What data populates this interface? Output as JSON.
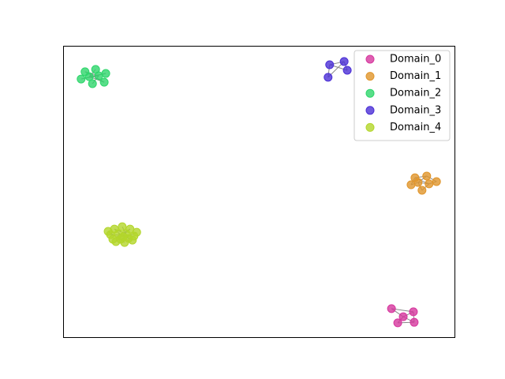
{
  "chart_data": {
    "type": "scatter",
    "xlim": [
      0,
      100
    ],
    "ylim": [
      0,
      100
    ],
    "legend": "upper right",
    "series": [
      {
        "name": "Domain_0",
        "color": "#d6379e",
        "x": [
          83.9,
          89.5,
          86.9,
          85.5,
          89.7
        ],
        "values": [
          9.8,
          8.7,
          7.0,
          4.9,
          5.1
        ],
        "edges": [
          [
            0,
            1
          ],
          [
            0,
            2
          ],
          [
            1,
            2
          ],
          [
            2,
            3
          ],
          [
            2,
            4
          ],
          [
            3,
            4
          ],
          [
            1,
            4
          ]
        ]
      },
      {
        "name": "Domain_1",
        "color": "#e0952b",
        "x": [
          89.9,
          92.9,
          95.4,
          88.9,
          91.7,
          93.5,
          90.7
        ],
        "values": [
          54.7,
          55.3,
          53.4,
          52.3,
          50.4,
          52.6,
          53.1
        ],
        "edges": [
          [
            0,
            1
          ],
          [
            1,
            2
          ],
          [
            0,
            3
          ],
          [
            3,
            6
          ],
          [
            6,
            4
          ],
          [
            4,
            5
          ],
          [
            5,
            2
          ],
          [
            6,
            5
          ],
          [
            0,
            5
          ],
          [
            1,
            6
          ]
        ]
      },
      {
        "name": "Domain_2",
        "color": "#2ed66b",
        "x": [
          5.6,
          8.3,
          10.9,
          4.6,
          7.5,
          10.5,
          9.1,
          6.7
        ],
        "values": [
          91.1,
          91.9,
          90.5,
          88.6,
          87.0,
          87.5,
          89.7,
          89.4
        ],
        "edges": [
          [
            0,
            6
          ],
          [
            1,
            7
          ],
          [
            2,
            7
          ],
          [
            3,
            6
          ],
          [
            4,
            6
          ],
          [
            5,
            7
          ],
          [
            0,
            5
          ],
          [
            3,
            2
          ]
        ]
      },
      {
        "name": "Domain_3",
        "color": "#4b2fd6",
        "x": [
          68.1,
          71.8,
          72.6,
          67.7
        ],
        "values": [
          93.5,
          94.6,
          91.6,
          89.2
        ],
        "edges": [
          [
            0,
            1
          ],
          [
            1,
            2
          ],
          [
            0,
            2
          ],
          [
            1,
            3
          ],
          [
            0,
            3
          ]
        ]
      },
      {
        "name": "Domain_4",
        "color": "#b3d62b",
        "x": [
          13.1,
          15.1,
          17.1,
          18.8,
          12.1,
          14.1,
          16.1,
          18.1,
          12.7,
          14.7,
          16.7,
          13.5,
          15.7,
          17.7,
          11.5,
          15.3
        ],
        "values": [
          37.1,
          37.9,
          37.1,
          36.0,
          35.2,
          35.5,
          35.5,
          34.7,
          33.6,
          33.6,
          33.9,
          32.8,
          32.5,
          33.3,
          36.3,
          34.4
        ],
        "edges": [
          [
            0,
            6
          ],
          [
            1,
            10
          ],
          [
            2,
            8
          ],
          [
            4,
            7
          ],
          [
            5,
            13
          ],
          [
            9,
            3
          ],
          [
            11,
            2
          ],
          [
            12,
            14
          ],
          [
            15,
            0
          ]
        ]
      }
    ]
  }
}
